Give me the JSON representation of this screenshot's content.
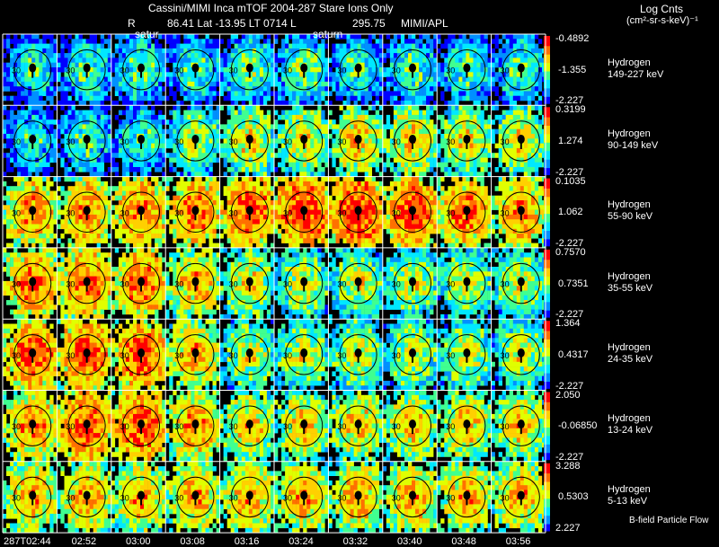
{
  "header": {
    "title": "Cassini/MIMI Inca mTOF  2004-287    Stare    Ions Only",
    "r_label": "R",
    "orbit_info": "86.41 Lat -13.95 LT 0714 L",
    "l_value": "295.75",
    "source": "MIMI/APL",
    "saturn_label_1": "satur",
    "saturn_label_2": "saturn"
  },
  "colorbar_title": {
    "line1": "Log Cnts",
    "line2": "(cm²-sr-s-keV)⁻¹"
  },
  "footer_note": "B-field Particle Flow",
  "chart_data": {
    "type": "heatmap",
    "description_axis": "energy channel rows x time columns",
    "species": "Hydrogen",
    "times": [
      "287T02:44",
      "02:52",
      "03:00",
      "03:08",
      "03:16",
      "03:24",
      "03:32",
      "03:40",
      "03:48",
      "03:56"
    ],
    "channels": [
      {
        "species": "Hydrogen",
        "energy": "149-227 keV",
        "cmax": "-0.4892",
        "cmid": "-1.355",
        "cmin": "-2.227",
        "intensity": [
          0.25,
          0.3,
          0.3,
          0.3,
          0.35,
          0.35,
          0.3,
          0.3,
          0.3,
          0.3
        ]
      },
      {
        "species": "Hydrogen",
        "energy": "90-149 keV",
        "cmax": "0.3199",
        "cmid": "1.274",
        "cmin": "-2.227",
        "intensity": [
          0.25,
          0.3,
          0.3,
          0.4,
          0.5,
          0.5,
          0.55,
          0.55,
          0.5,
          0.5
        ]
      },
      {
        "species": "Hydrogen",
        "energy": "55-90 keV",
        "cmax": "0.1035",
        "cmid": "1.062",
        "cmin": "-2.227",
        "intensity": [
          0.65,
          0.65,
          0.7,
          0.7,
          0.75,
          0.8,
          0.8,
          0.75,
          0.7,
          0.65
        ]
      },
      {
        "species": "Hydrogen",
        "energy": "35-55 keV",
        "cmax": "0.7570",
        "cmid": "0.7351",
        "cmin": "-2.227",
        "intensity": [
          0.7,
          0.7,
          0.7,
          0.6,
          0.5,
          0.45,
          0.45,
          0.45,
          0.45,
          0.45
        ]
      },
      {
        "species": "Hydrogen",
        "energy": "24-35 keV",
        "cmax": "1.364",
        "cmid": "0.4317",
        "cmin": "-2.227",
        "intensity": [
          0.75,
          0.75,
          0.75,
          0.6,
          0.45,
          0.45,
          0.45,
          0.45,
          0.45,
          0.45
        ]
      },
      {
        "species": "Hydrogen",
        "energy": "13-24 keV",
        "cmax": "2.050",
        "cmid": "-0.06850",
        "cmin": "-2.227",
        "intensity": [
          0.65,
          0.75,
          0.75,
          0.65,
          0.55,
          0.55,
          0.55,
          0.55,
          0.55,
          0.55
        ]
      },
      {
        "species": "Hydrogen",
        "energy": "5-13 keV",
        "cmax": "3.288",
        "cmid": "0.5303",
        "cmin": "2.227",
        "intensity": [
          0.6,
          0.6,
          0.6,
          0.6,
          0.6,
          0.6,
          0.6,
          0.6,
          0.6,
          0.6
        ]
      }
    ],
    "ring_label": "30",
    "colorscale": [
      "#0000ff",
      "#0090ff",
      "#00e8ff",
      "#40ff90",
      "#e0ff00",
      "#ffd000",
      "#ff7000",
      "#ff0000"
    ]
  }
}
